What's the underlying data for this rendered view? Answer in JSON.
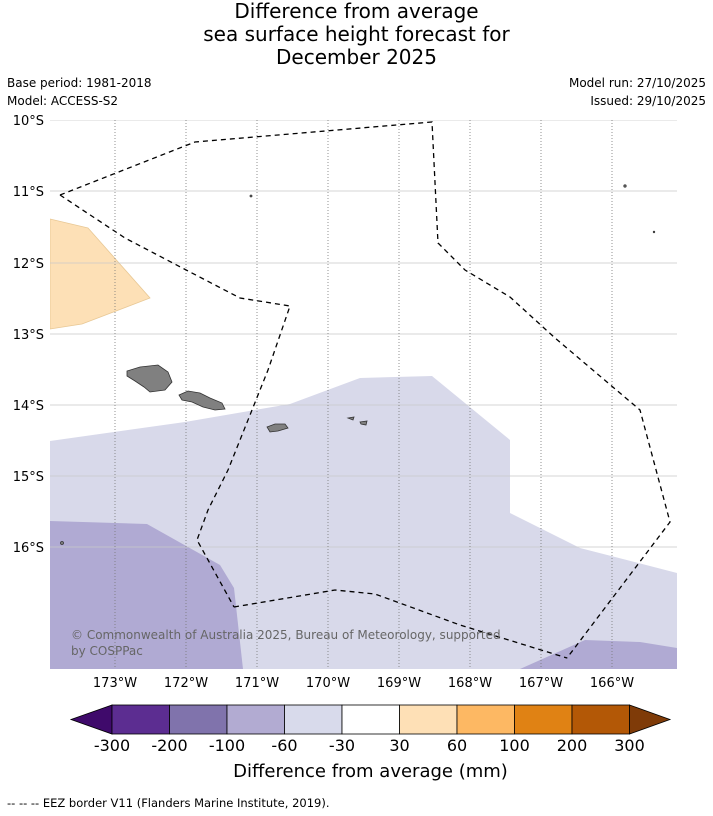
{
  "title": {
    "line1": "Difference from average",
    "line2": "sea surface height forecast for",
    "line3": "December 2025"
  },
  "meta": {
    "base_period": "Base period: 1981-2018",
    "model": "Model: ACCESS-S2",
    "model_run": "Model run: 27/10/2025",
    "issued": "Issued: 29/10/2025"
  },
  "map": {
    "lat_labels": [
      "10°S",
      "11°S",
      "12°S",
      "13°S",
      "14°S",
      "15°S",
      "16°S"
    ],
    "lon_labels": [
      "173°W",
      "172°W",
      "171°W",
      "170°W",
      "169°W",
      "168°W",
      "167°W",
      "166°W"
    ],
    "copyright": "© Commonwealth of Australia 2025, Bureau of Meteorology, supported by COSPPac",
    "colors": {
      "land": "#808080",
      "band_minus30_minus60": "#d8d9ea",
      "band_minus60_minus100": "#b0aad3",
      "band_30_60": "#fde0b6"
    }
  },
  "colorbar": {
    "title": "Difference from average (mm)",
    "ticks": [
      "-300",
      "-200",
      "-100",
      "-60",
      "-30",
      "30",
      "60",
      "100",
      "200",
      "300"
    ],
    "colors": [
      "#3f0a6b",
      "#5c2d91",
      "#8073ac",
      "#b2abd2",
      "#d8daeb",
      "#ffffff",
      "#fee0b6",
      "#fdb863",
      "#e08214",
      "#b35806",
      "#7f3b08"
    ]
  },
  "footnote": "--  --  -- EEZ border V11 (Flanders Marine Institute, 2019)."
}
